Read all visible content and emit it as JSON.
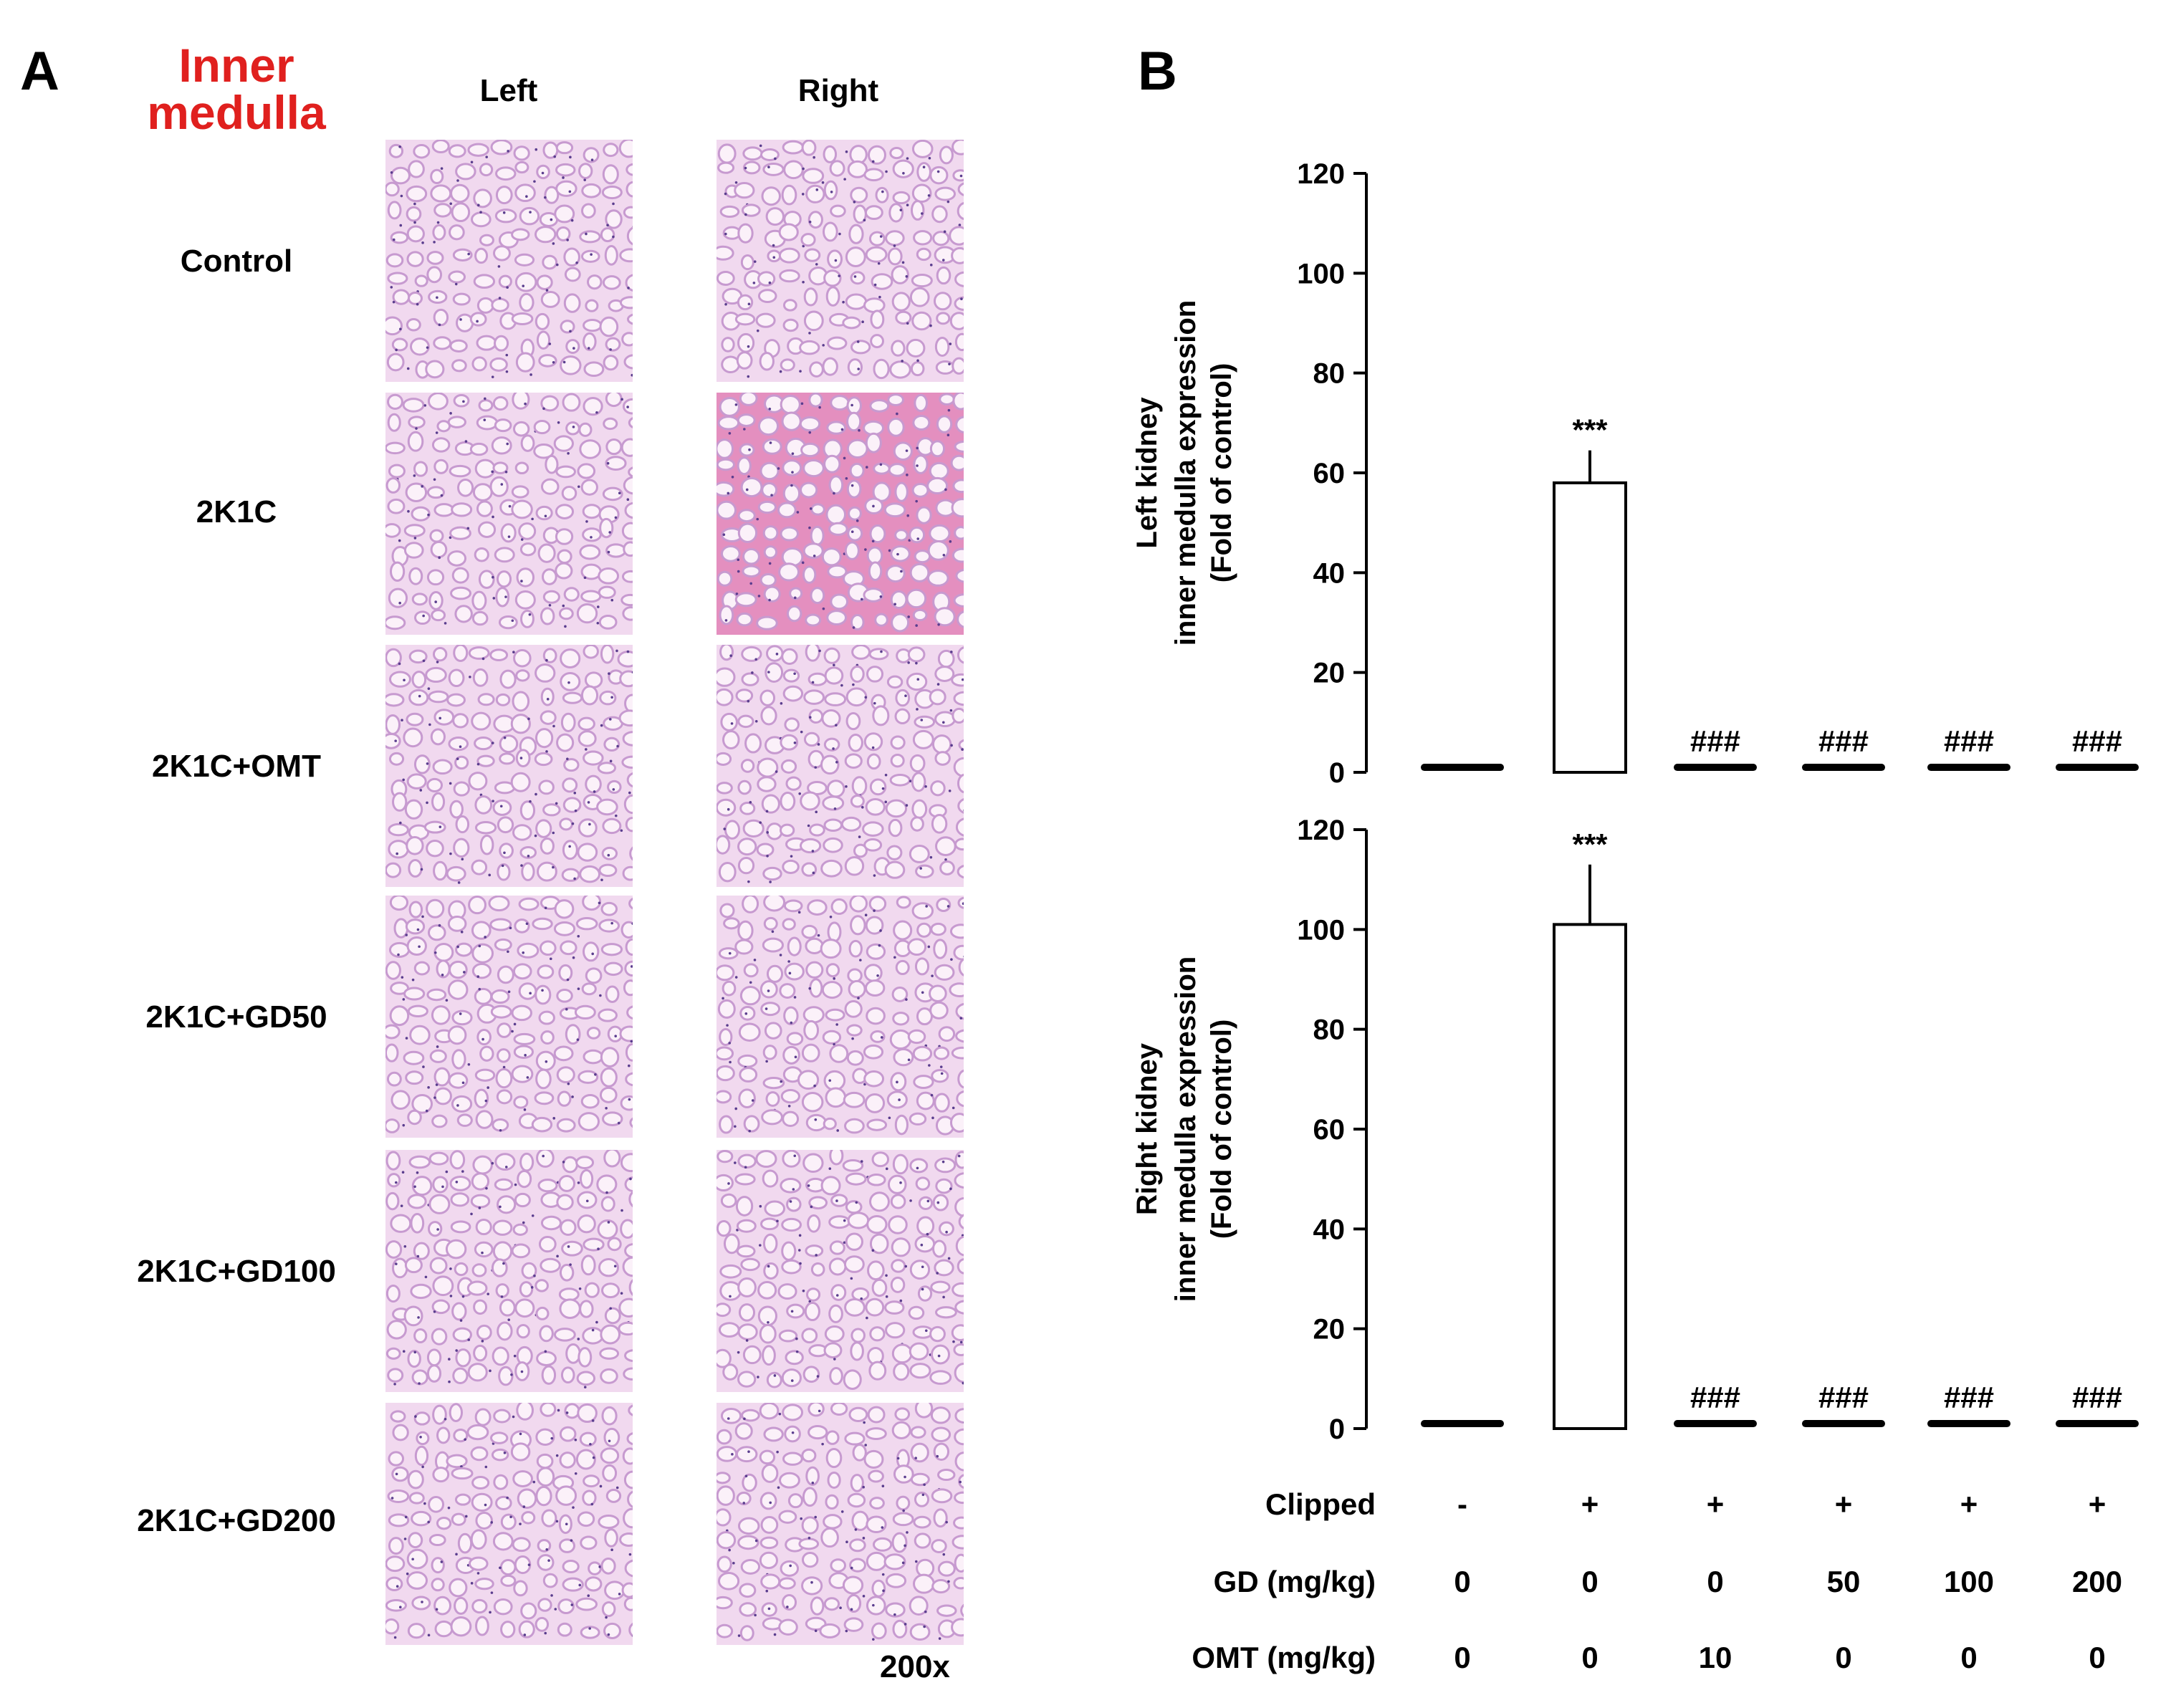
{
  "panel_a": {
    "letter": "A",
    "region_title_line1": "Inner",
    "region_title_line2": "medulla",
    "columns": [
      "Left",
      "Right"
    ],
    "rows": [
      "Control",
      "2K1C",
      "2K1C+OMT",
      "2K1C+GD50",
      "2K1C+GD100",
      "2K1C+GD200"
    ],
    "magnification": "200x",
    "image_desc": "H&E stained histology micrographs",
    "colors": {
      "title": "#e0201e",
      "stain_bg": "#f1d9ef",
      "stain_lumen": "#fbf1f9",
      "stain_wall": "#c79ad0",
      "nuclei": "#5a3d8e",
      "eosin": "#e48fbf"
    }
  },
  "panel_b": {
    "letter": "B",
    "conditions": {
      "rows": [
        {
          "label": "Clipped",
          "values": [
            "-",
            "+",
            "+",
            "+",
            "+",
            "+"
          ]
        },
        {
          "label": "GD (mg/kg)",
          "values": [
            "0",
            "0",
            "0",
            "50",
            "100",
            "200"
          ]
        },
        {
          "label": "OMT (mg/kg)",
          "values": [
            "0",
            "0",
            "10",
            "0",
            "0",
            "0"
          ]
        }
      ]
    }
  },
  "chart_data": [
    {
      "type": "bar",
      "ylabel_lines": [
        "Left kidney",
        "inner medulla expression",
        "(Fold of control)"
      ],
      "ylim": [
        0,
        120
      ],
      "yticks": [
        0,
        20,
        40,
        60,
        80,
        100,
        120
      ],
      "categories": [
        "Control",
        "2K1C",
        "2K1C+OMT",
        "2K1C+GD50",
        "2K1C+GD100",
        "2K1C+GD200"
      ],
      "values": [
        1,
        58,
        1,
        1,
        1,
        1
      ],
      "errors": [
        0,
        6.5,
        0,
        0,
        0,
        0
      ],
      "annotations": [
        "",
        "***",
        "###",
        "###",
        "###",
        "###"
      ]
    },
    {
      "type": "bar",
      "ylabel_lines": [
        "Right kidney",
        "inner medulla expression",
        "(Fold of control)"
      ],
      "ylim": [
        0,
        120
      ],
      "yticks": [
        0,
        20,
        40,
        60,
        80,
        100,
        120
      ],
      "categories": [
        "Control",
        "2K1C",
        "2K1C+OMT",
        "2K1C+GD50",
        "2K1C+GD100",
        "2K1C+GD200"
      ],
      "values": [
        1,
        101,
        1,
        1,
        1,
        1
      ],
      "errors": [
        0,
        12,
        0,
        0,
        0,
        0
      ],
      "annotations": [
        "",
        "***",
        "###",
        "###",
        "###",
        "###"
      ]
    }
  ]
}
